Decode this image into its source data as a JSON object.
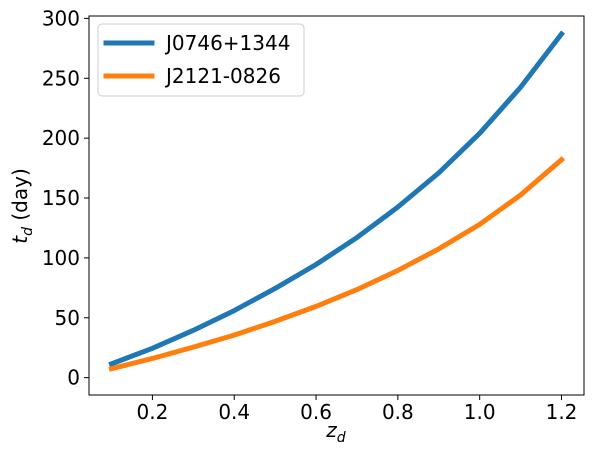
{
  "chart_data": {
    "type": "line",
    "title": "",
    "xlabel": {
      "main": "z",
      "sub": "d"
    },
    "ylabel": {
      "main": "t",
      "sub": "d",
      "rest": " (day)"
    },
    "xlim": [
      0.045,
      1.255
    ],
    "ylim": [
      -14.5,
      302
    ],
    "xticks": [
      0.2,
      0.4,
      0.6,
      0.8,
      1.0,
      1.2
    ],
    "xtick_labels": [
      "0.2",
      "0.4",
      "0.6",
      "0.8",
      "1.0",
      "1.2"
    ],
    "yticks": [
      0,
      50,
      100,
      150,
      200,
      250,
      300
    ],
    "ytick_labels": [
      "0",
      "50",
      "100",
      "150",
      "200",
      "250",
      "300"
    ],
    "grid": false,
    "legend_position": "top-left",
    "x": [
      0.1,
      0.2,
      0.3,
      0.4,
      0.5,
      0.6,
      0.7,
      0.8,
      0.9,
      1.0,
      1.1,
      1.2
    ],
    "series": [
      {
        "name": "J0746+1344",
        "color": "#1f77b4",
        "values": [
          11.5,
          24.5,
          39.5,
          56,
          74.5,
          94.5,
          117,
          142.5,
          171,
          204,
          242.5,
          287
        ]
      },
      {
        "name": "J2121-0826",
        "color": "#ff7f0e",
        "values": [
          7.5,
          16,
          25.5,
          35.5,
          47,
          59.5,
          73.5,
          89.5,
          107.5,
          128,
          152.5,
          182
        ]
      }
    ]
  }
}
